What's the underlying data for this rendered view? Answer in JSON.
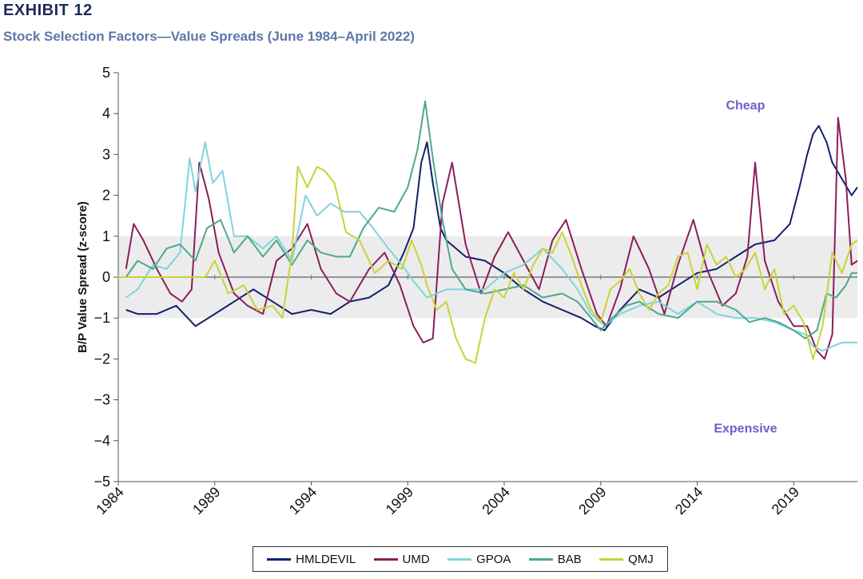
{
  "exhibit_label": "EXHIBIT 12",
  "subtitle": "Stock Selection Factors—Value Spreads (June 1984–April 2022)",
  "chart_data": {
    "type": "line",
    "title": "Stock Selection Factors—Value Spreads (June 1984–April 2022)",
    "xlabel": "",
    "ylabel": "B/P Value Spread  (z-score)",
    "xlim": [
      1984.0,
      2022.3
    ],
    "ylim": [
      -5,
      5
    ],
    "x_ticks": [
      1984,
      1989,
      1994,
      1999,
      2004,
      2009,
      2014,
      2019
    ],
    "y_ticks": [
      5,
      4,
      3,
      2,
      1,
      0,
      -1,
      -2,
      -3,
      -4,
      -5
    ],
    "y_tick_labels": [
      "5",
      "4",
      "3",
      "2",
      "1",
      "0",
      "−1",
      "−2",
      "−3",
      "−4",
      "−5"
    ],
    "shaded_band": [
      -1,
      1
    ],
    "annotations": [
      {
        "text": "Cheap",
        "x": 2016.5,
        "y": 4.1
      },
      {
        "text": "Expensive",
        "x": 2016.5,
        "y": -3.8
      }
    ],
    "grid": false,
    "legend_position": "bottom",
    "series": [
      {
        "name": "HMLDEVIL",
        "color": "#14206b",
        "x": [
          1984.4,
          1985,
          1986,
          1987,
          1988,
          1989,
          1990,
          1991,
          1992,
          1993,
          1994,
          1995,
          1996,
          1997,
          1998,
          1998.8,
          1999.3,
          1999.7,
          2000.0,
          2000.3,
          2000.7,
          2001,
          2002,
          2003,
          2004,
          2005,
          2006,
          2007,
          2008,
          2008.7,
          2009.2,
          2010,
          2011,
          2012,
          2013,
          2014,
          2015,
          2016,
          2017,
          2018,
          2018.8,
          2019.3,
          2019.7,
          2020.0,
          2020.3,
          2020.7,
          2021.0,
          2021.5,
          2022.0,
          2022.3
        ],
        "y": [
          -0.8,
          -0.9,
          -0.9,
          -0.7,
          -1.2,
          -0.9,
          -0.6,
          -0.3,
          -0.6,
          -0.9,
          -0.8,
          -0.9,
          -0.6,
          -0.5,
          -0.2,
          0.6,
          1.2,
          2.8,
          3.3,
          2.3,
          1.2,
          0.9,
          0.5,
          0.4,
          0.1,
          -0.3,
          -0.6,
          -0.8,
          -1.0,
          -1.2,
          -1.3,
          -0.8,
          -0.3,
          -0.5,
          -0.2,
          0.1,
          0.2,
          0.5,
          0.8,
          0.9,
          1.3,
          2.2,
          3.0,
          3.5,
          3.7,
          3.3,
          2.8,
          2.4,
          2.0,
          2.2
        ]
      },
      {
        "name": "UMD",
        "color": "#8a1e5c",
        "x": [
          1984.4,
          1984.8,
          1985.3,
          1986,
          1986.7,
          1987.3,
          1987.8,
          1988.2,
          1988.7,
          1989.2,
          1990,
          1990.7,
          1991.5,
          1992.2,
          1993,
          1993.8,
          1994.5,
          1995.3,
          1996,
          1997,
          1997.8,
          1998.6,
          1999.3,
          1999.8,
          2000.3,
          2000.8,
          2001.3,
          2002,
          2002.8,
          2003.5,
          2004.2,
          2005,
          2005.8,
          2006.5,
          2007.2,
          2008,
          2008.8,
          2009.3,
          2010,
          2010.7,
          2011.5,
          2012.3,
          2013,
          2013.8,
          2014.5,
          2015.3,
          2016,
          2016.6,
          2017,
          2017.5,
          2018.2,
          2019,
          2019.7,
          2020.2,
          2020.6,
          2021.0,
          2021.3,
          2021.7,
          2022.0,
          2022.3
        ],
        "y": [
          0.2,
          1.3,
          0.9,
          0.2,
          -0.4,
          -0.6,
          -0.3,
          2.8,
          1.9,
          0.6,
          -0.4,
          -0.7,
          -0.9,
          0.4,
          0.7,
          1.3,
          0.2,
          -0.4,
          -0.6,
          0.2,
          0.6,
          -0.2,
          -1.2,
          -1.6,
          -1.5,
          1.8,
          2.8,
          0.8,
          -0.4,
          0.5,
          1.1,
          0.4,
          -0.3,
          0.9,
          1.4,
          0.2,
          -0.9,
          -1.2,
          -0.3,
          1.0,
          0.2,
          -0.9,
          0.3,
          1.4,
          0.2,
          -0.7,
          -0.4,
          0.5,
          2.8,
          0.4,
          -0.6,
          -1.2,
          -1.2,
          -1.8,
          -2.0,
          -1.4,
          3.9,
          2.4,
          0.3,
          0.4
        ]
      },
      {
        "name": "GPOA",
        "color": "#7fd4dc",
        "x": [
          1984.4,
          1985,
          1985.8,
          1986.5,
          1987.2,
          1987.7,
          1988,
          1988.5,
          1988.9,
          1989.4,
          1990,
          1990.7,
          1991.5,
          1992.2,
          1993,
          1993.7,
          1994.3,
          1995,
          1995.7,
          1996.5,
          1997.2,
          1998,
          1998.7,
          1999.3,
          2000,
          2001,
          2002,
          2003,
          2004,
          2005,
          2006,
          2007,
          2007.8,
          2008.5,
          2009.2,
          2010,
          2011,
          2012,
          2013,
          2014,
          2015,
          2016,
          2017,
          2018,
          2019,
          2019.6,
          2020,
          2020.5,
          2021,
          2021.5,
          2022,
          2022.3
        ],
        "y": [
          -0.5,
          -0.3,
          0.3,
          0.2,
          0.6,
          2.9,
          2.1,
          3.3,
          2.3,
          2.6,
          1.0,
          1.0,
          0.7,
          1.0,
          0.4,
          2.0,
          1.5,
          1.8,
          1.6,
          1.6,
          1.2,
          0.7,
          0.3,
          -0.1,
          -0.5,
          -0.3,
          -0.3,
          -0.3,
          0.1,
          0.3,
          0.7,
          0.2,
          -0.3,
          -0.9,
          -1.2,
          -0.9,
          -0.7,
          -0.6,
          -0.9,
          -0.6,
          -0.9,
          -1.0,
          -1.0,
          -1.1,
          -1.3,
          -1.4,
          -1.7,
          -1.8,
          -1.7,
          -1.6,
          -1.6,
          -1.6
        ]
      },
      {
        "name": "BAB",
        "color": "#4fa88b",
        "x": [
          1984.4,
          1985,
          1985.8,
          1986.5,
          1987.2,
          1988,
          1988.6,
          1989.3,
          1990,
          1990.7,
          1991.5,
          1992.2,
          1993,
          1993.8,
          1994.5,
          1995.3,
          1996,
          1996.7,
          1997.5,
          1998.3,
          1999,
          1999.5,
          1999.9,
          2000.3,
          2000.8,
          2001.3,
          2002,
          2003,
          2004,
          2005,
          2006,
          2007,
          2007.8,
          2008.5,
          2009,
          2009.6,
          2010.3,
          2011,
          2012,
          2013,
          2014,
          2015,
          2016,
          2016.7,
          2017.5,
          2018.2,
          2019,
          2019.6,
          2020.2,
          2020.7,
          2021.2,
          2021.7,
          2022.0,
          2022.3
        ],
        "y": [
          0.0,
          0.4,
          0.2,
          0.7,
          0.8,
          0.4,
          1.2,
          1.4,
          0.6,
          1.0,
          0.5,
          0.9,
          0.3,
          0.9,
          0.6,
          0.5,
          0.5,
          1.2,
          1.7,
          1.6,
          2.2,
          3.1,
          4.3,
          2.9,
          1.4,
          0.2,
          -0.3,
          -0.4,
          -0.3,
          -0.2,
          -0.5,
          -0.4,
          -0.6,
          -1.0,
          -1.3,
          -1.0,
          -0.7,
          -0.6,
          -0.9,
          -1.0,
          -0.6,
          -0.6,
          -0.8,
          -1.1,
          -1.0,
          -1.1,
          -1.3,
          -1.5,
          -1.3,
          -0.4,
          -0.5,
          -0.2,
          0.1,
          0.1
        ]
      },
      {
        "name": "QMJ",
        "color": "#c7d436",
        "x": [
          1984.0,
          1985,
          1986,
          1987,
          1988,
          1988.5,
          1989,
          1989.7,
          1990.5,
          1991.2,
          1992,
          1992.5,
          1993,
          1993.3,
          1993.8,
          1994.3,
          1994.7,
          1995.2,
          1995.8,
          1996.5,
          1997.3,
          1998,
          1998.7,
          1999.2,
          1999.7,
          2000.0,
          2000.5,
          2001,
          2001.5,
          2002,
          2002.5,
          2003,
          2003.5,
          2004,
          2004.5,
          2005,
          2005.5,
          2006,
          2006.5,
          2007,
          2007.5,
          2008,
          2008.5,
          2009,
          2009.5,
          2010,
          2010.5,
          2011,
          2011.5,
          2012,
          2012.5,
          2013,
          2013.5,
          2014,
          2014.5,
          2015,
          2015.5,
          2016,
          2016.5,
          2017,
          2017.5,
          2018,
          2018.5,
          2019,
          2019.5,
          2020,
          2020.5,
          2021,
          2021.5,
          2022,
          2022.3
        ],
        "y": [
          0.0,
          0.0,
          0.0,
          0.0,
          0.0,
          0.0,
          0.4,
          -0.4,
          -0.2,
          -0.8,
          -0.7,
          -1.0,
          0.6,
          2.7,
          2.2,
          2.7,
          2.6,
          2.3,
          1.1,
          0.9,
          0.1,
          0.4,
          0.2,
          0.9,
          0.3,
          -0.2,
          -0.8,
          -0.6,
          -1.5,
          -2.0,
          -2.1,
          -1.0,
          -0.3,
          -0.5,
          0.1,
          -0.3,
          0.3,
          0.7,
          0.6,
          1.1,
          0.5,
          -0.2,
          -0.8,
          -1.1,
          -0.3,
          -0.1,
          0.2,
          -0.4,
          -0.8,
          -0.4,
          -0.2,
          0.5,
          0.6,
          -0.3,
          0.8,
          0.3,
          0.5,
          0.0,
          0.2,
          0.6,
          -0.3,
          0.2,
          -0.9,
          -0.7,
          -1.1,
          -2.0,
          -1.2,
          0.6,
          0.1,
          0.8,
          0.9
        ]
      }
    ]
  }
}
